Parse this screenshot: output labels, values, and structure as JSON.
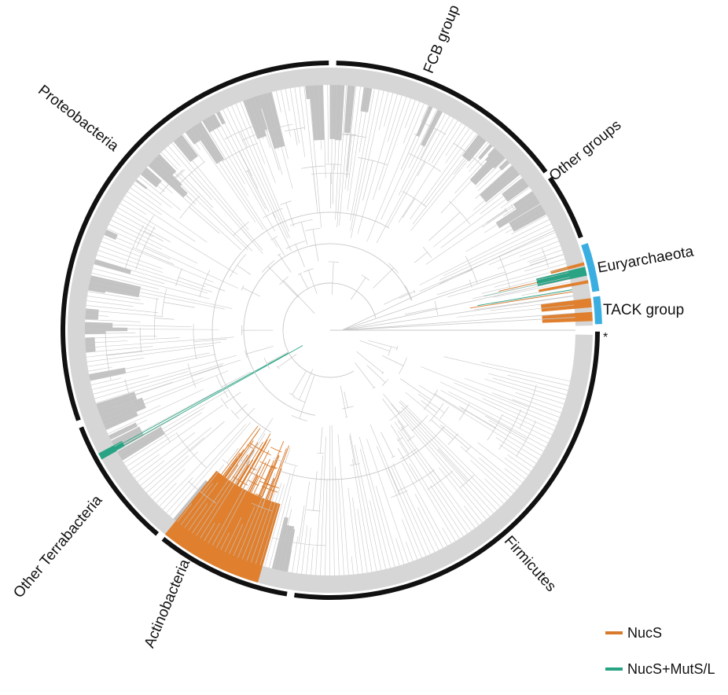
{
  "colors": {
    "background": "#ffffff",
    "ring": "#d6d6d6",
    "ring_dark": "#c3c3c3",
    "branch": "#c8c8c8",
    "nucs": "#e0802e",
    "nucs_line": "#d97a2a",
    "nucs_mutsl": "#28a383",
    "bacteria_bar": "#111111",
    "archaea_bar": "#3aaee0"
  },
  "clades": [
    {
      "label": "FCB group",
      "domain": "bacteria"
    },
    {
      "label": "Other groups",
      "domain": "bacteria"
    },
    {
      "label": "Euryarchaeota",
      "domain": "archaea"
    },
    {
      "label": "TACK group",
      "domain": "archaea"
    },
    {
      "label": "Firmicutes",
      "domain": "bacteria"
    },
    {
      "label": "Actinobacteria",
      "domain": "bacteria"
    },
    {
      "label": "Other Terrabacteria",
      "domain": "bacteria"
    },
    {
      "label": "Proteobacteria",
      "domain": "bacteria"
    }
  ],
  "marker": "*",
  "legend": [
    {
      "label": "NucS",
      "color": "#d97a2a"
    },
    {
      "label": "NucS+MutS/L",
      "color": "#28a383"
    }
  ]
}
